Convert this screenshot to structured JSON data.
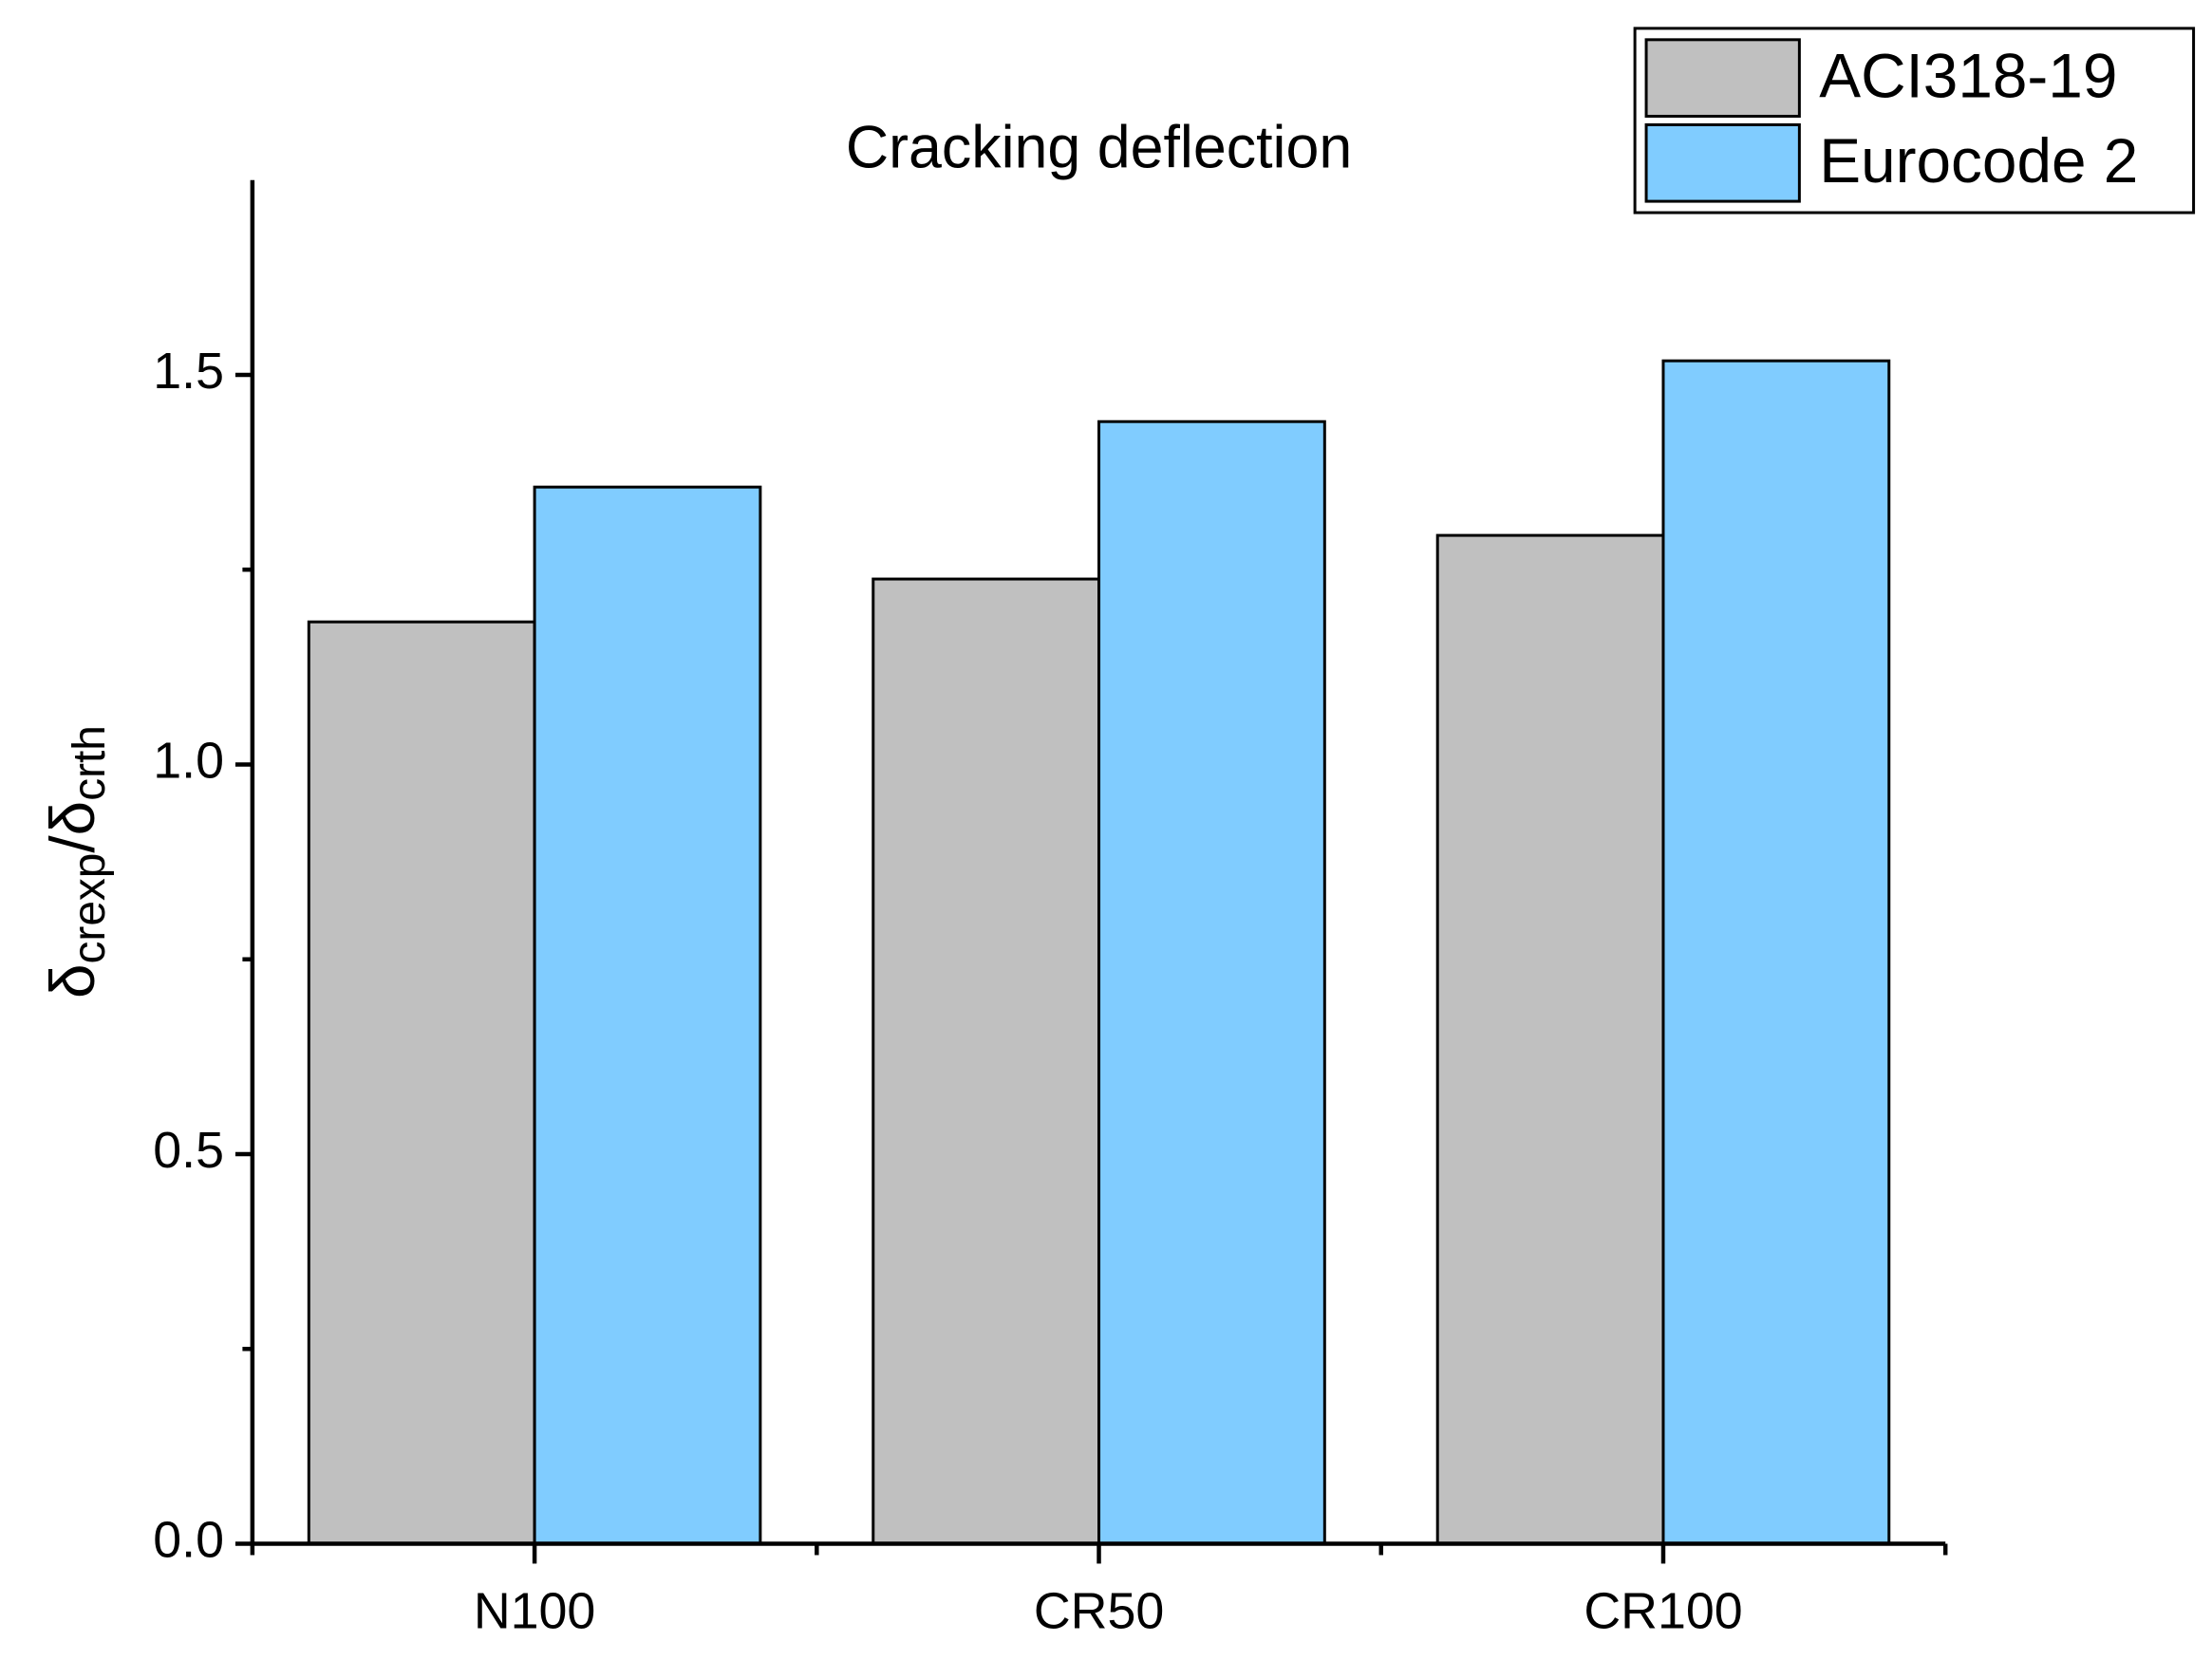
{
  "chart_data": {
    "type": "bar",
    "title": "Cracking deflection",
    "ylabel": [
      "δ",
      "crexp",
      "/δ",
      "crth"
    ],
    "categories": [
      "N100",
      "CR50",
      "CR100"
    ],
    "series": [
      {
        "name": "ACI318-19",
        "color": "#c0c0c0",
        "values": [
          1.183,
          1.238,
          1.294
        ]
      },
      {
        "name": "Eurocode 2",
        "color": "#80ccff",
        "values": [
          1.356,
          1.44,
          1.518
        ]
      }
    ],
    "ylim": [
      0,
      1.75
    ],
    "yticks": [
      {
        "value": 0,
        "label": "0.0"
      },
      {
        "value": 0.5,
        "label": "0.5"
      },
      {
        "value": 1,
        "label": "1.0"
      },
      {
        "value": 1.5,
        "label": "1.5"
      }
    ],
    "yminorticks": [
      0.25,
      0.75,
      1.25
    ],
    "legend": "top-right"
  }
}
